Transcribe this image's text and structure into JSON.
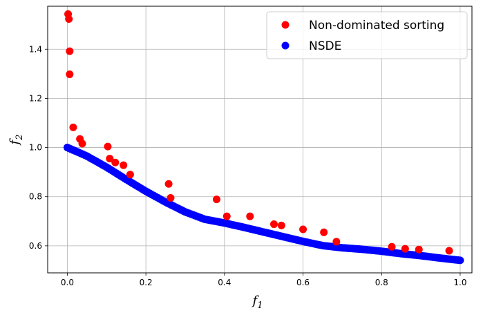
{
  "chart_data": {
    "type": "scatter",
    "title": "",
    "xlabel": "f",
    "xlabel_sub": "1",
    "ylabel": "f",
    "ylabel_sub": "2",
    "xlim": [
      -0.05,
      1.03
    ],
    "ylim": [
      0.49,
      1.575
    ],
    "xticks": [
      0.0,
      0.2,
      0.4,
      0.6,
      0.8,
      1.0
    ],
    "xtick_labels": [
      "0.0",
      "0.2",
      "0.4",
      "0.6",
      "0.8",
      "1.0"
    ],
    "yticks": [
      0.6,
      0.8,
      1.0,
      1.2,
      1.4
    ],
    "ytick_labels": [
      "0.6",
      "0.8",
      "1.0",
      "1.2",
      "1.4"
    ],
    "grid": true,
    "legend_position": "top-right",
    "series": [
      {
        "name": "Non-dominated sorting",
        "color": "#ff0000",
        "points": [
          [
            0.002,
            1.543
          ],
          [
            0.004,
            1.523
          ],
          [
            0.006,
            1.392
          ],
          [
            0.006,
            1.298
          ],
          [
            0.015,
            1.082
          ],
          [
            0.032,
            1.035
          ],
          [
            0.038,
            1.016
          ],
          [
            0.103,
            1.004
          ],
          [
            0.108,
            0.955
          ],
          [
            0.122,
            0.939
          ],
          [
            0.143,
            0.928
          ],
          [
            0.16,
            0.89
          ],
          [
            0.258,
            0.852
          ],
          [
            0.263,
            0.795
          ],
          [
            0.38,
            0.789
          ],
          [
            0.406,
            0.72
          ],
          [
            0.465,
            0.72
          ],
          [
            0.526,
            0.688
          ],
          [
            0.545,
            0.683
          ],
          [
            0.6,
            0.667
          ],
          [
            0.653,
            0.655
          ],
          [
            0.685,
            0.617
          ],
          [
            0.826,
            0.596
          ],
          [
            0.86,
            0.588
          ],
          [
            0.895,
            0.585
          ],
          [
            0.972,
            0.58
          ]
        ]
      },
      {
        "name": "NSDE",
        "color": "#0000ff",
        "front_points": [
          [
            0.0,
            1.0
          ],
          [
            0.05,
            0.965
          ],
          [
            0.1,
            0.92
          ],
          [
            0.15,
            0.87
          ],
          [
            0.2,
            0.822
          ],
          [
            0.25,
            0.778
          ],
          [
            0.3,
            0.738
          ],
          [
            0.35,
            0.708
          ],
          [
            0.4,
            0.693
          ],
          [
            0.45,
            0.675
          ],
          [
            0.5,
            0.656
          ],
          [
            0.55,
            0.637
          ],
          [
            0.6,
            0.618
          ],
          [
            0.65,
            0.601
          ],
          [
            0.7,
            0.592
          ],
          [
            0.75,
            0.586
          ],
          [
            0.8,
            0.578
          ],
          [
            0.85,
            0.568
          ],
          [
            0.9,
            0.56
          ],
          [
            0.95,
            0.55
          ],
          [
            1.0,
            0.541
          ]
        ]
      }
    ]
  }
}
